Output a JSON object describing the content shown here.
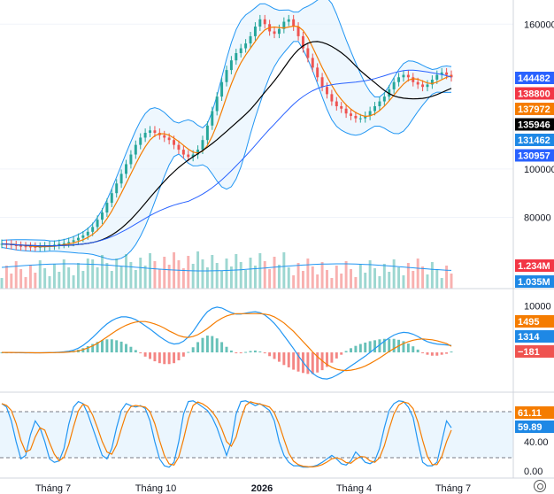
{
  "chart_data": [
    {
      "type": "candlestick",
      "ylim": [
        60000,
        170000
      ],
      "y_ticks": [
        "160000",
        "100000",
        "80000"
      ],
      "y_tick_values": [
        160000,
        100000,
        80000
      ],
      "price_tags": [
        {
          "label": "144482",
          "value": 144482,
          "color": "#2962ff"
        },
        {
          "label": "138800",
          "value": 138800,
          "color": "#f23645"
        },
        {
          "label": "137972",
          "value": 137972,
          "color": "#f57c00"
        },
        {
          "label": "135946",
          "value": 135946,
          "color": "#000000"
        },
        {
          "label": "131462",
          "value": 131462,
          "color": "#1e88e5"
        },
        {
          "label": "130957",
          "value": 130957,
          "color": "#2962ff"
        }
      ],
      "volume_tags": [
        {
          "label": "1.234M",
          "color": "#f23645"
        },
        {
          "label": "1.035M",
          "color": "#1e88e5"
        }
      ],
      "closes": [
        69000,
        68800,
        68500,
        68200,
        68000,
        67900,
        67800,
        67700,
        67800,
        68000,
        68300,
        68600,
        69000,
        69300,
        69800,
        70500,
        71500,
        72500,
        74000,
        76000,
        79000,
        82000,
        86000,
        90000,
        94000,
        98000,
        102000,
        106000,
        110000,
        113000,
        115000,
        116000,
        115000,
        114000,
        113000,
        112000,
        110000,
        108000,
        106000,
        105000,
        106000,
        108000,
        112000,
        118000,
        124000,
        130000,
        136000,
        141000,
        145000,
        148000,
        150000,
        152000,
        155000,
        159000,
        162000,
        160000,
        157000,
        156000,
        158000,
        161000,
        162000,
        159000,
        155000,
        150000,
        146000,
        142000,
        138000,
        134000,
        131000,
        128000,
        126000,
        125000,
        123000,
        122000,
        121000,
        121000,
        122000,
        124000,
        126000,
        128000,
        130000,
        133000,
        136000,
        138000,
        139000,
        138000,
        136000,
        135000,
        134000,
        135000,
        137000,
        139000,
        140000,
        139000,
        138000
      ]
    },
    {
      "type": "macd",
      "y_ticks": [
        "10000"
      ],
      "value_tags": [
        {
          "label": "1495",
          "color": "#f57c00"
        },
        {
          "label": "1314",
          "color": "#1e88e5"
        },
        {
          "label": "−181",
          "color": "#ef5350"
        }
      ],
      "macd": [
        0,
        0,
        -20,
        -40,
        -60,
        -80,
        -90,
        -90,
        -80,
        -60,
        -30,
        0,
        50,
        120,
        250,
        500,
        900,
        1500,
        2300,
        3200,
        4200,
        5200,
        6100,
        6800,
        7300,
        7600,
        7600,
        7400,
        7000,
        6400,
        5700,
        5000,
        4200,
        3400,
        2700,
        2100,
        1800,
        1900,
        2400,
        3300,
        4500,
        6000,
        7500,
        8700,
        9400,
        9700,
        9500,
        9000,
        8500,
        8200,
        8200,
        8400,
        8600,
        8700,
        8500,
        8000,
        7200,
        6200,
        5000,
        3600,
        2200,
        800,
        -700,
        -2100,
        -3400,
        -4500,
        -5200,
        -5600,
        -5700,
        -5400,
        -4900,
        -4300,
        -3600,
        -2900,
        -2200,
        -1500,
        -800,
        0,
        800,
        1600,
        2400,
        3100,
        3700,
        4100,
        4300,
        4200,
        3900,
        3400,
        2800,
        2300,
        2000,
        1800,
        1700,
        1600,
        1495
      ],
      "signal": [
        0,
        0,
        -10,
        -20,
        -35,
        -50,
        -65,
        -75,
        -78,
        -75,
        -65,
        -50,
        -30,
        5,
        60,
        160,
        330,
        590,
        950,
        1400,
        1950,
        2600,
        3300,
        4000,
        4700,
        5300,
        5800,
        6200,
        6500,
        6600,
        6600,
        6400,
        6100,
        5700,
        5200,
        4600,
        4100,
        3600,
        3300,
        3200,
        3400,
        3800,
        4400,
        5100,
        5900,
        6700,
        7300,
        7800,
        8100,
        8300,
        8300,
        8300,
        8300,
        8300,
        8300,
        8200,
        8000,
        7600,
        7000,
        6300,
        5400,
        4500,
        3400,
        2300,
        1200,
        100,
        -900,
        -1800,
        -2600,
        -3200,
        -3600,
        -3800,
        -3900,
        -3800,
        -3600,
        -3300,
        -2900,
        -2400,
        -1800,
        -1200,
        -500,
        200,
        800,
        1400,
        1900,
        2300,
        2600,
        2800,
        2900,
        2800,
        2700,
        2500,
        2200,
        1900,
        1314
      ]
    },
    {
      "type": "stochastic_rsi",
      "y_ticks": [
        "40.00",
        "0.00"
      ],
      "value_tags": [
        {
          "label": "61.11",
          "color": "#f57c00"
        },
        {
          "label": "59.89",
          "color": "#1e88e5"
        }
      ],
      "bands": [
        80,
        20
      ],
      "k": [
        95,
        90,
        70,
        40,
        15,
        20,
        50,
        70,
        60,
        40,
        15,
        10,
        12,
        30,
        65,
        90,
        98,
        95,
        80,
        60,
        40,
        20,
        15,
        30,
        60,
        85,
        95,
        92,
        90,
        92,
        88,
        70,
        40,
        15,
        5,
        3,
        10,
        40,
        80,
        98,
        99,
        95,
        90,
        85,
        75,
        60,
        40,
        20,
        40,
        80,
        98,
        99,
        96,
        92,
        95,
        90,
        85,
        70,
        40,
        20,
        10,
        5,
        5,
        3,
        3,
        4,
        6,
        10,
        15,
        20,
        15,
        8,
        6,
        12,
        25,
        18,
        10,
        8,
        12,
        30,
        60,
        85,
        95,
        99,
        98,
        90,
        75,
        40,
        10,
        5,
        5,
        10,
        40,
        70,
        60
      ]
    }
  ],
  "x_axis": [
    "Tháng 7",
    "Tháng 10",
    "2026",
    "Tháng 4",
    "Tháng 7"
  ]
}
